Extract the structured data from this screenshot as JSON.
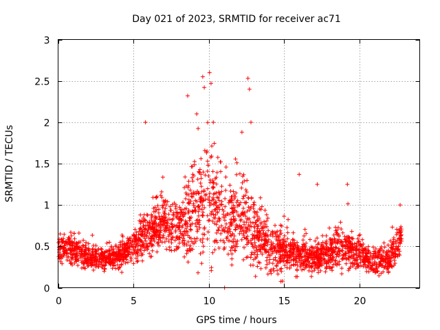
{
  "chart_data": {
    "type": "scatter",
    "title": "Day 021 of 2023, SRMTID for receiver ac71",
    "xlabel": "GPS time / hours",
    "ylabel": "SRMTID / TECUs",
    "xlim": [
      0,
      24
    ],
    "ylim": [
      0,
      3
    ],
    "xticks": [
      0,
      5,
      10,
      15,
      20
    ],
    "xtick_labels": [
      "0",
      "5",
      "10",
      "15",
      "20"
    ],
    "yticks": [
      0,
      0.5,
      1,
      1.5,
      2,
      2.5,
      3
    ],
    "ytick_labels": [
      "0",
      "0.5",
      "1",
      "1.5",
      "2",
      "2.5",
      "3"
    ],
    "grid": true,
    "marker": "plus",
    "series_color": "#ff0000",
    "density_profile": [
      {
        "hour": 0.0,
        "center": 0.48,
        "spread": 0.28
      },
      {
        "hour": 1.0,
        "center": 0.45,
        "spread": 0.3
      },
      {
        "hour": 2.0,
        "center": 0.36,
        "spread": 0.22
      },
      {
        "hour": 3.0,
        "center": 0.34,
        "spread": 0.22
      },
      {
        "hour": 4.0,
        "center": 0.36,
        "spread": 0.22
      },
      {
        "hour": 5.0,
        "center": 0.5,
        "spread": 0.3
      },
      {
        "hour": 6.0,
        "center": 0.65,
        "spread": 0.6
      },
      {
        "hour": 7.0,
        "center": 0.8,
        "spread": 0.5
      },
      {
        "hour": 8.0,
        "center": 0.7,
        "spread": 0.45
      },
      {
        "hour": 9.0,
        "center": 0.9,
        "spread": 1.1
      },
      {
        "hour": 10.0,
        "center": 1.1,
        "spread": 1.3
      },
      {
        "hour": 11.0,
        "center": 0.85,
        "spread": 0.85
      },
      {
        "hour": 12.0,
        "center": 0.8,
        "spread": 0.9
      },
      {
        "hour": 13.0,
        "center": 0.65,
        "spread": 0.7
      },
      {
        "hour": 14.0,
        "center": 0.5,
        "spread": 0.5
      },
      {
        "hour": 15.0,
        "center": 0.45,
        "spread": 0.45
      },
      {
        "hour": 16.0,
        "center": 0.38,
        "spread": 0.35
      },
      {
        "hour": 17.0,
        "center": 0.36,
        "spread": 0.3
      },
      {
        "hour": 18.0,
        "center": 0.42,
        "spread": 0.35
      },
      {
        "hour": 19.0,
        "center": 0.5,
        "spread": 0.45
      },
      {
        "hour": 20.0,
        "center": 0.4,
        "spread": 0.3
      },
      {
        "hour": 21.0,
        "center": 0.3,
        "spread": 0.25
      },
      {
        "hour": 22.0,
        "center": 0.35,
        "spread": 0.3
      },
      {
        "hour": 22.8,
        "center": 0.6,
        "spread": 0.4
      }
    ],
    "highlighted_points": [
      {
        "x": 5.8,
        "y": 2.0
      },
      {
        "x": 8.6,
        "y": 2.32
      },
      {
        "x": 9.2,
        "y": 2.1
      },
      {
        "x": 9.6,
        "y": 2.55
      },
      {
        "x": 9.7,
        "y": 2.42
      },
      {
        "x": 10.05,
        "y": 2.6
      },
      {
        "x": 10.15,
        "y": 2.47
      },
      {
        "x": 10.3,
        "y": 2.0
      },
      {
        "x": 12.2,
        "y": 1.88
      },
      {
        "x": 12.6,
        "y": 2.53
      },
      {
        "x": 12.7,
        "y": 2.4
      },
      {
        "x": 12.8,
        "y": 2.0
      },
      {
        "x": 16.0,
        "y": 1.37
      },
      {
        "x": 17.2,
        "y": 1.25
      },
      {
        "x": 19.2,
        "y": 1.25
      },
      {
        "x": 22.7,
        "y": 1.0
      },
      {
        "x": 11.05,
        "y": 0.0
      }
    ]
  }
}
